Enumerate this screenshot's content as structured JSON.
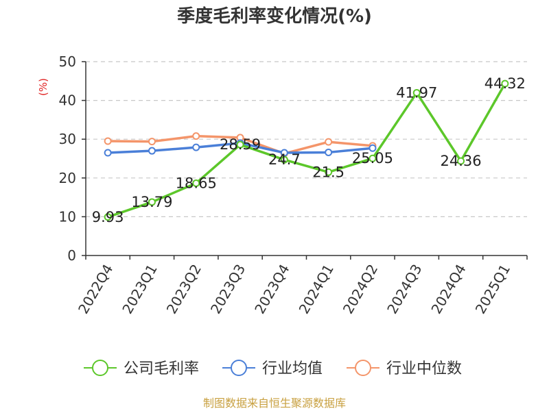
{
  "chart_data": {
    "type": "line",
    "title": "季度毛利率变化情况(%)",
    "ylabel": "(%)",
    "xlabel": "",
    "categories": [
      "2022Q4",
      "2023Q1",
      "2023Q2",
      "2023Q3",
      "2023Q4",
      "2024Q1",
      "2024Q2",
      "2024Q3",
      "2024Q4",
      "2025Q1"
    ],
    "ylim": [
      0,
      50
    ],
    "yticks": [
      "0",
      "10",
      "20",
      "30",
      "40",
      "50"
    ],
    "grid": true,
    "legend_position": "bottom",
    "series": [
      {
        "name": "公司毛利率",
        "color": "#5cc72a",
        "values": [
          9.93,
          13.79,
          18.65,
          28.59,
          24.7,
          21.5,
          25.05,
          41.97,
          24.36,
          44.32
        ],
        "labels": [
          "9.93",
          "13.79",
          "18.65",
          "28.59",
          "24.7",
          "21.5",
          "25.05",
          "41.97",
          "24.36",
          "44.32"
        ]
      },
      {
        "name": "行业均值",
        "color": "#4a7fd8",
        "values": [
          26.5,
          27.0,
          27.9,
          29.0,
          26.5,
          26.6,
          27.7,
          null,
          null,
          null
        ]
      },
      {
        "name": "行业中位数",
        "color": "#f4956a",
        "values": [
          29.5,
          29.4,
          30.8,
          30.4,
          26.3,
          29.3,
          28.3,
          null,
          null,
          null
        ]
      }
    ]
  },
  "footer": {
    "source": "制图数据来自恒生聚源数据库"
  }
}
